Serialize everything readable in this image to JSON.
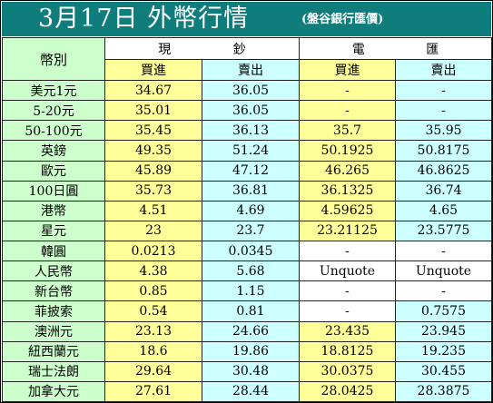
{
  "title": {
    "main": "3月17日 外幣行情",
    "sub": "(盤谷銀行匯價)"
  },
  "header": {
    "currency_label": "幣別",
    "cash_group": [
      "現",
      "鈔"
    ],
    "telegraphic_group": [
      "電",
      "匯"
    ],
    "buy": "買進",
    "sell": "賣出"
  },
  "rows": [
    {
      "name": "美元1元",
      "cash_buy": "34.67",
      "cash_sell": "36.05",
      "tt_buy": "-",
      "tt_sell": "-"
    },
    {
      "name": "5-20元",
      "cash_buy": "35.01",
      "cash_sell": "36.05",
      "tt_buy": "-",
      "tt_sell": "-"
    },
    {
      "name": "50-100元",
      "cash_buy": "35.45",
      "cash_sell": "36.13",
      "tt_buy": "35.7",
      "tt_sell": "35.95"
    },
    {
      "name": "英鎊",
      "cash_buy": "49.35",
      "cash_sell": "51.24",
      "tt_buy": "50.1925",
      "tt_sell": "50.8175"
    },
    {
      "name": "歐元",
      "cash_buy": "45.89",
      "cash_sell": "47.12",
      "tt_buy": "46.265",
      "tt_sell": "46.8625"
    },
    {
      "name": "100日圓",
      "cash_buy": "35.73",
      "cash_sell": "36.81",
      "tt_buy": "36.1325",
      "tt_sell": "36.74"
    },
    {
      "name": "港幣",
      "cash_buy": "4.51",
      "cash_sell": "4.69",
      "tt_buy": "4.59625",
      "tt_sell": "4.65"
    },
    {
      "name": "星元",
      "cash_buy": "23",
      "cash_sell": "23.7",
      "tt_buy": "23.21125",
      "tt_sell": "23.5775"
    },
    {
      "name": "韓圓",
      "cash_buy": "0.0213",
      "cash_sell": "0.0345",
      "tt_buy": "-",
      "tt_sell": "-"
    },
    {
      "name": "人民幣",
      "cash_buy": "4.38",
      "cash_sell": "5.68",
      "tt_buy": "Unquote",
      "tt_sell": "Unquote"
    },
    {
      "name": "新台幣",
      "cash_buy": "0.85",
      "cash_sell": "1.15",
      "tt_buy": "-",
      "tt_sell": "-"
    },
    {
      "name": "菲披索",
      "cash_buy": "0.54",
      "cash_sell": "0.81",
      "tt_buy": "-",
      "tt_sell": "0.7575"
    },
    {
      "name": "澳洲元",
      "cash_buy": "23.13",
      "cash_sell": "24.66",
      "tt_buy": "23.435",
      "tt_sell": "23.945"
    },
    {
      "name": "紐西蘭元",
      "cash_buy": "18.6",
      "cash_sell": "19.86",
      "tt_buy": "18.8125",
      "tt_sell": "19.235"
    },
    {
      "name": "瑞士法朗",
      "cash_buy": "29.64",
      "cash_sell": "30.48",
      "tt_buy": "30.0375",
      "tt_sell": "30.455"
    },
    {
      "name": "加拿大元",
      "cash_buy": "27.61",
      "cash_sell": "28.44",
      "tt_buy": "28.0425",
      "tt_sell": "28.3875"
    }
  ],
  "colors": {
    "title_bg": "#0f7d7b",
    "label_bg": "#ccffcc",
    "buy_bg": "#ffff99",
    "sell_bg": "#ccffff"
  }
}
